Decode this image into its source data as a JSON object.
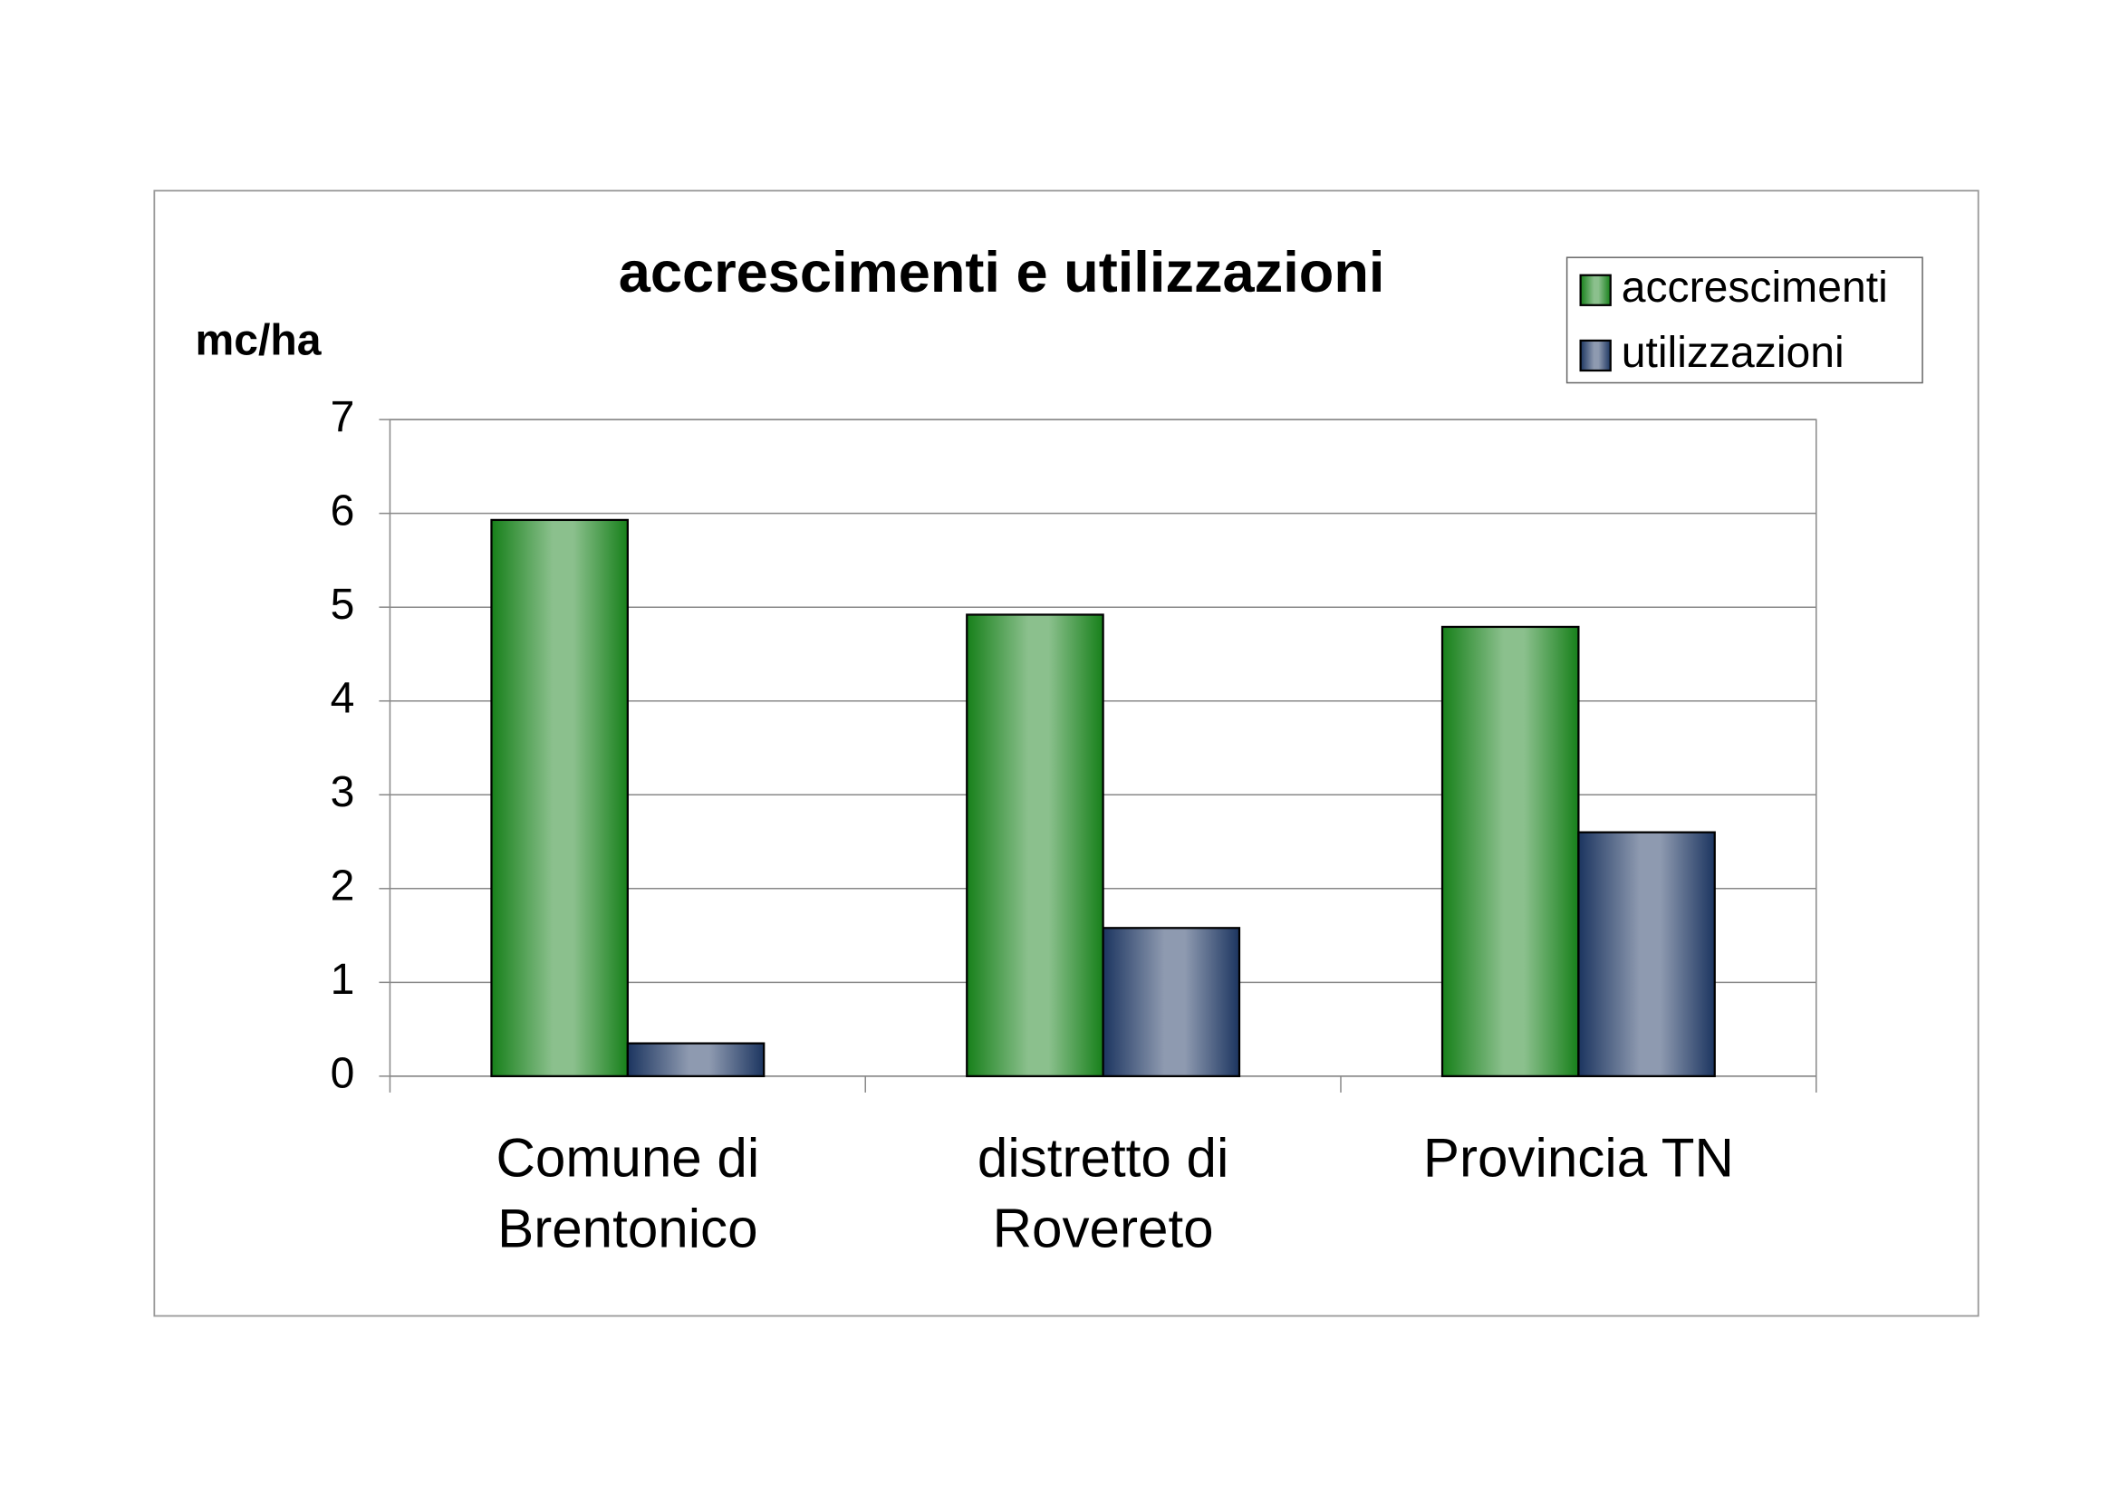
{
  "chart_data": {
    "type": "bar",
    "title": "accrescimenti e utilizzazioni",
    "y_label": "mc/ha",
    "categories": [
      [
        "Comune di",
        "Brentonico"
      ],
      [
        "distretto di",
        "Rovereto"
      ],
      [
        "Provincia TN"
      ]
    ],
    "series": [
      {
        "name": "accrescimenti",
        "color": "#17801a",
        "values": [
          5.93,
          4.92,
          4.79
        ]
      },
      {
        "name": "utilizzazioni",
        "color": "#1c3560",
        "values": [
          0.35,
          1.58,
          2.6
        ]
      }
    ],
    "ylim": [
      0,
      7
    ],
    "yticks": [
      0,
      1,
      2,
      3,
      4,
      5,
      6,
      7
    ],
    "grid": true,
    "legend": "top-right"
  }
}
